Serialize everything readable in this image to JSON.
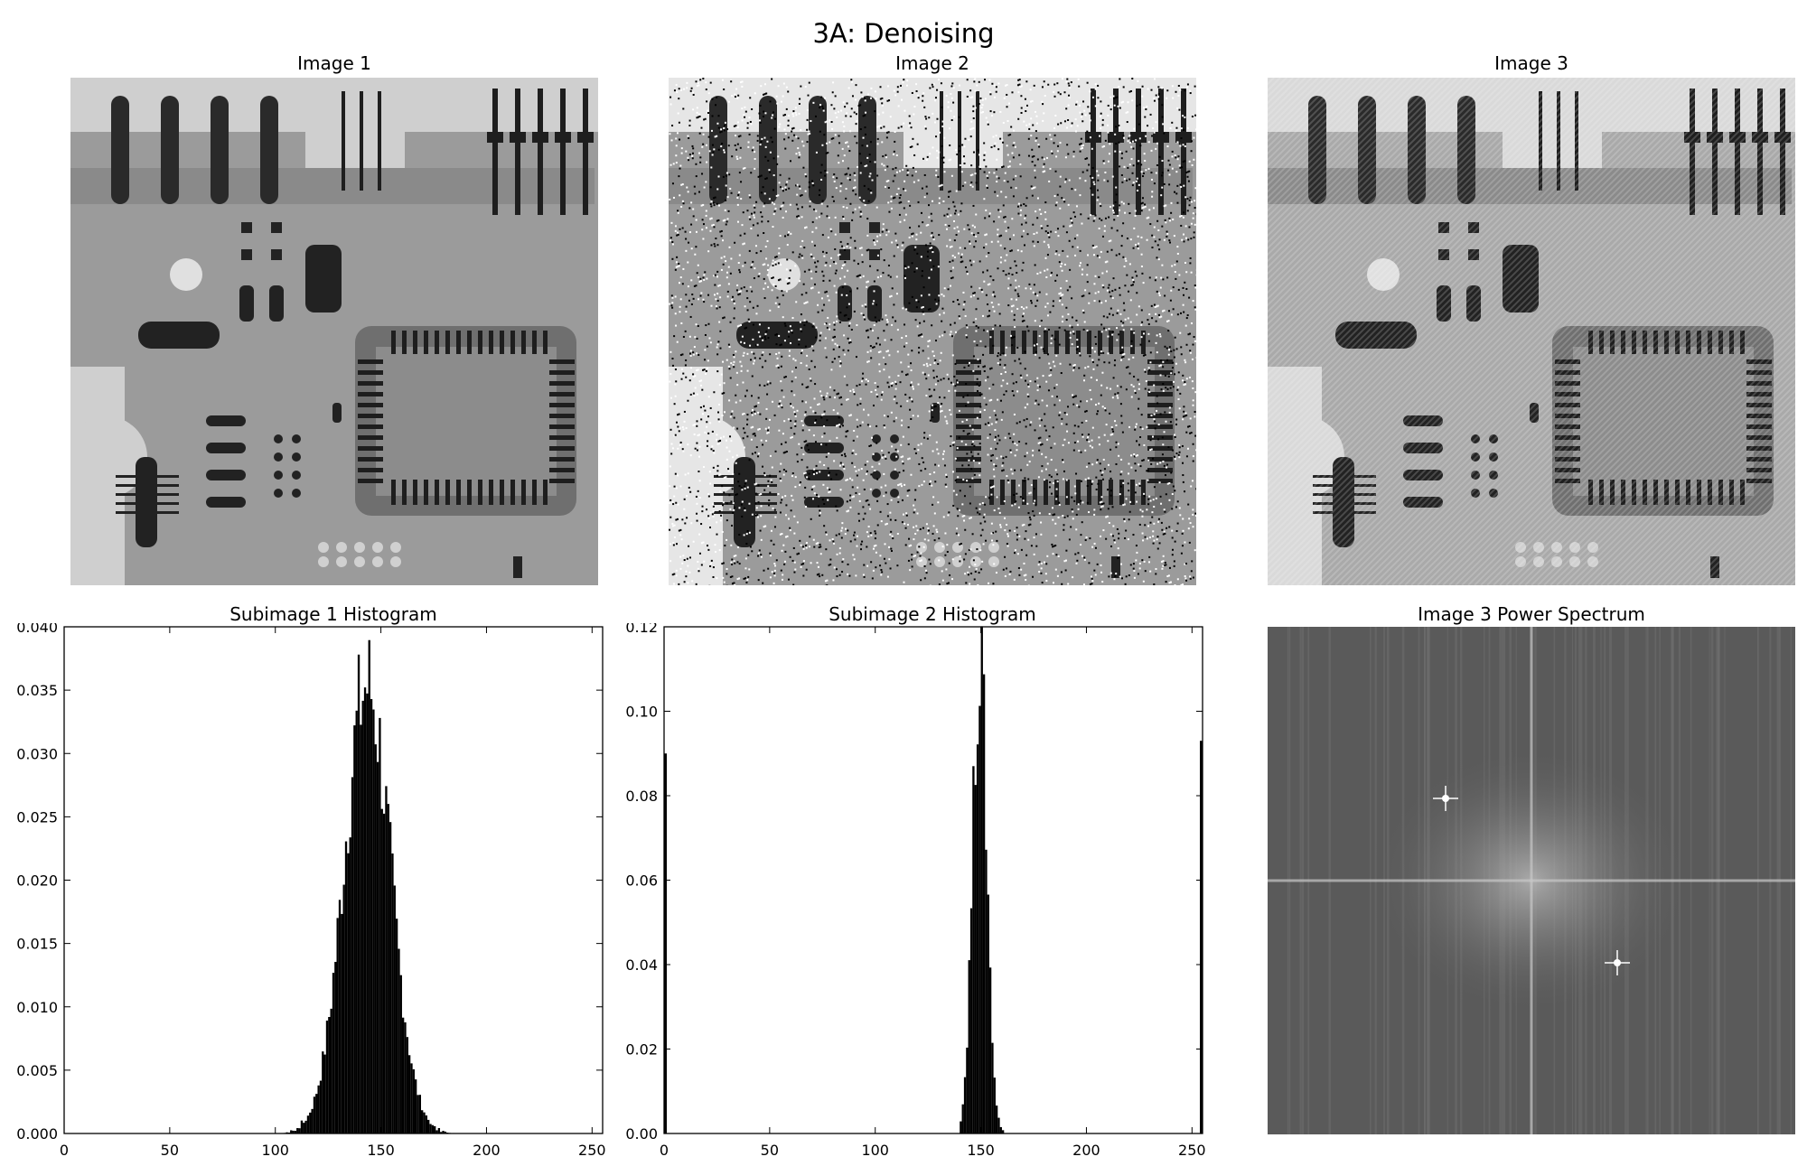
{
  "figure": {
    "suptitle": "3A: Denoising"
  },
  "images": [
    {
      "title": "Image 1"
    },
    {
      "title": "Image 2"
    },
    {
      "title": "Image 3"
    }
  ],
  "spectrum": {
    "title": "Image 3 Power Spectrum"
  },
  "chart_data": [
    {
      "type": "bar",
      "title": "Subimage 1 Histogram",
      "xlabel": "",
      "ylabel": "",
      "xlim": [
        0,
        255
      ],
      "ylim": [
        0,
        0.04
      ],
      "xticks": [
        "0",
        "50",
        "100",
        "150",
        "200",
        "250"
      ],
      "yticks": [
        "0.000",
        "0.005",
        "0.010",
        "0.015",
        "0.020",
        "0.025",
        "0.030",
        "0.035",
        "0.040"
      ],
      "distribution": {
        "shape": "gaussian",
        "mean": 143,
        "std": 11,
        "peak": 0.0365,
        "range": [
          96,
          190
        ]
      },
      "grid": false,
      "color": "#000000"
    },
    {
      "type": "bar",
      "title": "Subimage 2 Histogram",
      "xlabel": "",
      "ylabel": "",
      "xlim": [
        0,
        255
      ],
      "ylim": [
        0,
        0.12
      ],
      "xticks": [
        "0",
        "50",
        "100",
        "150",
        "200",
        "250"
      ],
      "yticks": [
        "0.00",
        "0.02",
        "0.04",
        "0.06",
        "0.08",
        "0.10",
        "0.12"
      ],
      "distribution": {
        "shape": "gaussian",
        "mean": 149,
        "std": 3.4,
        "peak": 0.116,
        "range": [
          140,
          160
        ]
      },
      "spikes": [
        {
          "x": 0,
          "y": 0.09
        },
        {
          "x": 255,
          "y": 0.093
        }
      ],
      "grid": false,
      "color": "#000000"
    }
  ]
}
